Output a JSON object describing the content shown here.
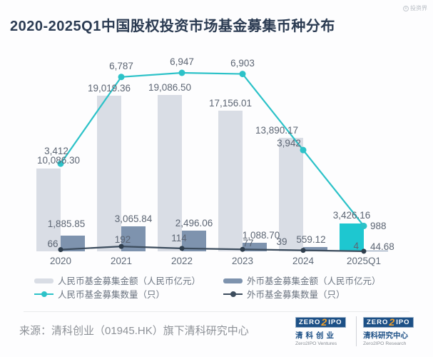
{
  "header": {
    "title": "2020-2025Q1中国股权投资市场基金募集币种分布",
    "watermark": "投资界"
  },
  "chart_data": {
    "type": "combo-bar-line",
    "title": "2020-2025Q1中国股权投资市场基金募集币种分布",
    "categories": [
      "2020",
      "2021",
      "2022",
      "2023",
      "2024",
      "2025Q1"
    ],
    "series": [
      {
        "id": "rmb_amount",
        "name": "人民币基金募集金额（人民币亿元）",
        "chart_type": "bar",
        "color": "#d9dde5",
        "highlight_color": "#1ec7d0",
        "highlight_index": 5,
        "values": [
          10086.3,
          19019.36,
          19086.5,
          17156.01,
          13890.17,
          3426.16
        ],
        "labels": [
          "10,086.30",
          "19,019.36",
          "19,086.50",
          "17,156.01",
          "13,890.17",
          "3,426.16"
        ]
      },
      {
        "id": "fx_amount",
        "name": "外币基金募集金额（人民币亿元）",
        "chart_type": "bar",
        "color": "#7e93ae",
        "values": [
          1885.85,
          3065.84,
          2496.06,
          1088.7,
          559.12,
          44.68
        ],
        "labels": [
          "1,885.85",
          "3,065.84",
          "2,496.06",
          "1,088.70",
          "559.12",
          "44.68"
        ]
      },
      {
        "id": "rmb_count",
        "name": "人民币基金募集数量（只）",
        "chart_type": "line",
        "color": "#2cc2c8",
        "values": [
          3412,
          6787,
          6947,
          6903,
          3942,
          988
        ],
        "labels": [
          "3,412",
          "6,787",
          "6,947",
          "6,903",
          "3,942",
          "988"
        ]
      },
      {
        "id": "fx_count",
        "name": "外币基金募集数量（只）",
        "chart_type": "line",
        "color": "#3c4c5d",
        "dot_color": "#2f3e4d",
        "values": [
          66,
          192,
          114,
          77,
          39,
          4
        ],
        "labels": [
          "66",
          "192",
          "114",
          "77",
          "39",
          "4"
        ]
      }
    ],
    "legend_position": "bottom",
    "grid": false,
    "y_axis_visible": false
  },
  "footer": {
    "source": "来源：清科创业（01945.HK）旗下清科研究中心",
    "logos": [
      {
        "zero": "ZERO",
        "two": "2",
        "ipo": "IPO",
        "cn": "清科创业",
        "en": "Zero2IPO Ventures"
      },
      {
        "zero": "ZERO",
        "two": "2",
        "ipo": "IPO",
        "cn": "清科研究中心",
        "en": "Zero2IPO Research"
      }
    ]
  }
}
